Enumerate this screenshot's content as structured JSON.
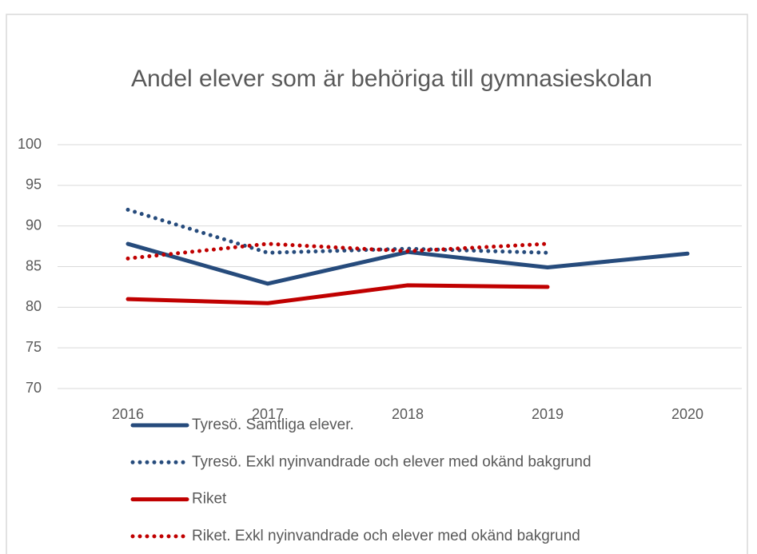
{
  "chart_data": {
    "type": "line",
    "title": "Andel elever som är behöriga till gymnasieskolan",
    "categories": [
      "2016",
      "2017",
      "2018",
      "2019",
      "2020"
    ],
    "series": [
      {
        "name": "Tyresö. Samtliga elever.",
        "color": "#264b7c",
        "style": "solid",
        "values": [
          87.8,
          82.9,
          86.8,
          84.9,
          86.6
        ]
      },
      {
        "name": "Tyresö. Exkl nyinvandrade och elever med okänd bakgrund",
        "color": "#264b7c",
        "style": "dotted",
        "values": [
          92.0,
          86.7,
          87.2,
          86.7,
          null
        ]
      },
      {
        "name": "Riket",
        "color": "#c00000",
        "style": "solid",
        "values": [
          81.0,
          80.5,
          82.7,
          82.5,
          null
        ]
      },
      {
        "name": "Riket. Exkl nyinvandrade och elever med okänd bakgrund",
        "color": "#c00000",
        "style": "dotted",
        "values": [
          86.0,
          87.8,
          86.9,
          87.8,
          null
        ]
      }
    ],
    "ylim": [
      70,
      100
    ],
    "yticks": [
      70,
      75,
      80,
      85,
      90,
      95,
      100
    ],
    "grid": true,
    "legend": "bottom"
  }
}
